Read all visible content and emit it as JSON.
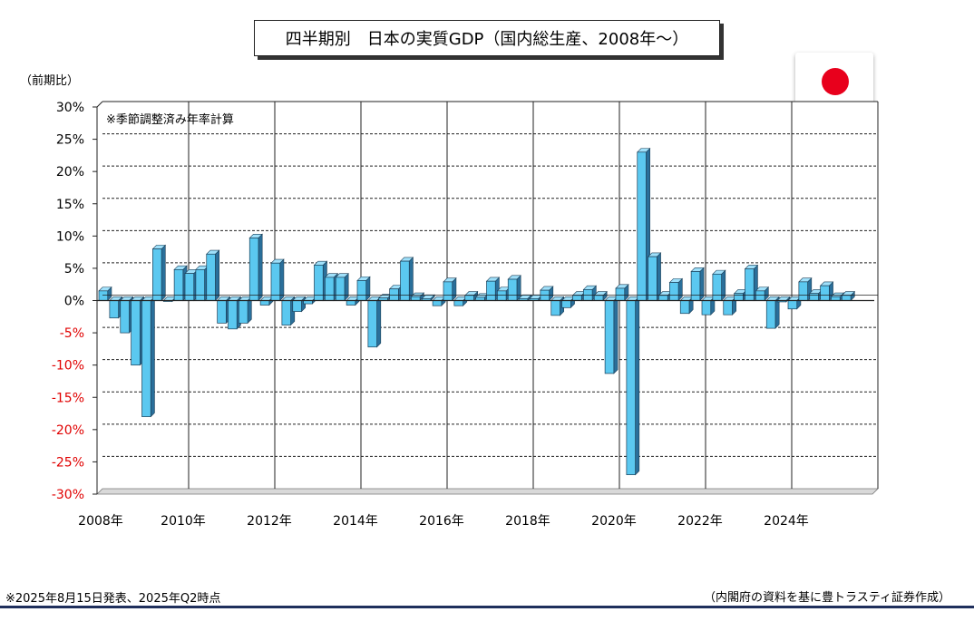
{
  "chart_data": {
    "type": "bar",
    "title": "四半期別　日本の実質GDP（国内総生産、2008年～）",
    "ylabel": "（前期比）",
    "annotation": "※季節調整済み年率計算",
    "ylim": [
      -30,
      30
    ],
    "y_ticks": [
      "30%",
      "25%",
      "20%",
      "15%",
      "10%",
      "5%",
      "0%",
      "-5%",
      "-10%",
      "-15%",
      "-20%",
      "-25%",
      "-30%"
    ],
    "x_tick_labels": [
      "2008年",
      "2010年",
      "2012年",
      "2014年",
      "2016年",
      "2018年",
      "2020年",
      "2022年",
      "2024年"
    ],
    "grid": true,
    "negative_tick_color": "#e00000",
    "bar_color": "#5bc8f0",
    "series": [
      {
        "values": [
          1.5,
          -2.7,
          -5.0,
          -10.0,
          -18.0,
          8.0,
          0.0,
          4.8,
          4.2,
          4.8,
          7.2,
          -3.5,
          -4.4,
          -3.5,
          9.7,
          -0.7,
          5.8,
          -3.8,
          -1.7,
          -0.5,
          5.5,
          3.6,
          3.6,
          -0.7,
          3.1,
          -7.2,
          0.4,
          1.8,
          6.1,
          0.6,
          0.3,
          -0.8,
          2.9,
          -0.8,
          0.8,
          0.5,
          3.0,
          1.5,
          3.3,
          0.3,
          0.3,
          1.6,
          -2.3,
          -1.1,
          0.8,
          1.7,
          0.8,
          -11.3,
          1.9,
          -27.0,
          23.0,
          6.8,
          0.8,
          2.8,
          -2.0,
          4.5,
          -2.2,
          4.1,
          -2.2,
          1.1,
          4.9,
          1.5,
          -4.3,
          -0.2,
          -1.3,
          2.9,
          1.1,
          2.3,
          0.6,
          0.8
        ]
      }
    ]
  },
  "flag": {
    "color": "#e8001c"
  },
  "footer": {
    "left": "※2025年8月15日発表、2025年Q2時点",
    "right": "（内閣府の資料を基に豊トラスティ証券作成）"
  }
}
